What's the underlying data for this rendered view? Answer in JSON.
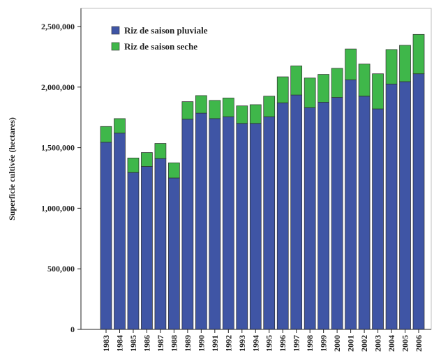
{
  "chart_data": {
    "type": "bar",
    "stacked": true,
    "title": "",
    "xlabel": "",
    "ylabel": "Superficie cultivée (hectares)",
    "ylim": [
      0,
      2600000
    ],
    "yticks": [
      0,
      500000,
      1000000,
      1500000,
      2000000,
      2500000
    ],
    "ytick_labels": [
      "0",
      "500,000",
      "1,000,000",
      "1,500,000",
      "2,000,000",
      "2,500,000"
    ],
    "grid": false,
    "legend_position": "top-left",
    "categories": [
      "1983",
      "1984",
      "1985",
      "1986",
      "1987",
      "1988",
      "1989",
      "1990",
      "1991",
      "1992",
      "1993",
      "1994",
      "1995",
      "1996",
      "1997",
      "1998",
      "1999",
      "2000",
      "2001",
      "2002",
      "2003",
      "2004",
      "2005",
      "2006"
    ],
    "series": [
      {
        "name": "Riz de saison pluviale",
        "color": "#3f55a5",
        "values": [
          1545000,
          1620000,
          1295000,
          1345000,
          1410000,
          1250000,
          1735000,
          1785000,
          1740000,
          1755000,
          1700000,
          1700000,
          1755000,
          1870000,
          1935000,
          1830000,
          1875000,
          1915000,
          2060000,
          1925000,
          1820000,
          2025000,
          2045000,
          2110000
        ]
      },
      {
        "name": "Riz de saison seche",
        "color": "#3fb74a",
        "values": [
          130000,
          120000,
          120000,
          115000,
          125000,
          125000,
          145000,
          145000,
          150000,
          155000,
          145000,
          155000,
          170000,
          215000,
          240000,
          245000,
          230000,
          240000,
          255000,
          265000,
          290000,
          285000,
          300000,
          325000
        ]
      }
    ]
  }
}
